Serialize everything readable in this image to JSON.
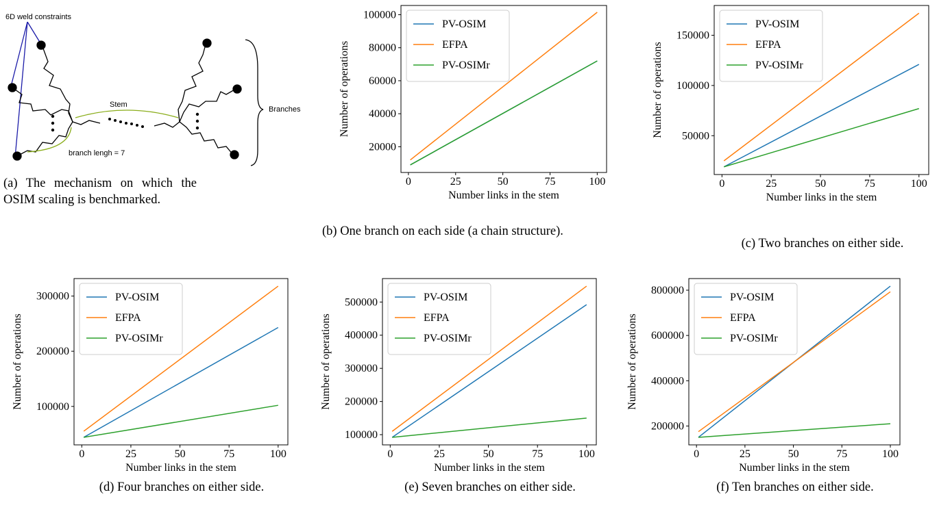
{
  "diagram": {
    "labels": [
      "6D weld constraints",
      "Stem",
      "branch lengh = 7",
      "Branches"
    ],
    "caption": "(a) The mechanism on which the OSIM scaling is benchmarked."
  },
  "chart_data": [
    {
      "type": "line",
      "caption": "(b) One branch on each side (a chain structure).",
      "x_label": "Number links in the stem",
      "y_label": "Number of operations",
      "x": [
        1,
        100
      ],
      "series": [
        {
          "name": "PV-OSIM",
          "color": "#1f77b4",
          "values": [
            9000,
            72000
          ]
        },
        {
          "name": "EFPA",
          "color": "#ff7f0e",
          "values": [
            12000,
            101500
          ]
        },
        {
          "name": "PV-OSIMr",
          "color": "#2ca02c",
          "values": [
            9000,
            72000
          ]
        }
      ],
      "xlim": [
        -3.95,
        104.95
      ],
      "xticks": [
        0,
        25,
        50,
        75,
        100
      ],
      "ylim": [
        4400,
        105600
      ],
      "yticks": [
        20000,
        40000,
        60000,
        80000,
        100000
      ],
      "legend": "upper left"
    },
    {
      "type": "line",
      "caption": "(c) Two branches on either side.",
      "x_label": "Number links in the stem",
      "y_label": "Number of operations",
      "x": [
        1,
        100
      ],
      "series": [
        {
          "name": "PV-OSIM",
          "color": "#1f77b4",
          "values": [
            19000,
            121000
          ]
        },
        {
          "name": "EFPA",
          "color": "#ff7f0e",
          "values": [
            25000,
            172000
          ]
        },
        {
          "name": "PV-OSIMr",
          "color": "#2ca02c",
          "values": [
            19000,
            77000
          ]
        }
      ],
      "xlim": [
        -3.95,
        104.95
      ],
      "xticks": [
        0,
        25,
        50,
        75,
        100
      ],
      "ylim": [
        11350,
        179650
      ],
      "yticks": [
        50000,
        100000,
        150000
      ],
      "legend": "upper left"
    },
    {
      "type": "line",
      "caption": "(d) Four branches on either side.",
      "x_label": "Number links in the stem",
      "y_label": "Number of operations",
      "x": [
        1,
        100
      ],
      "series": [
        {
          "name": "PV-OSIM",
          "color": "#1f77b4",
          "values": [
            44000,
            243000
          ]
        },
        {
          "name": "EFPA",
          "color": "#ff7f0e",
          "values": [
            55000,
            318000
          ]
        },
        {
          "name": "PV-OSIMr",
          "color": "#2ca02c",
          "values": [
            44000,
            102000
          ]
        }
      ],
      "xlim": [
        -3.95,
        104.95
      ],
      "xticks": [
        0,
        25,
        50,
        75,
        100
      ],
      "ylim": [
        30300,
        331700
      ],
      "yticks": [
        100000,
        200000,
        300000
      ],
      "legend": "upper left"
    },
    {
      "type": "line",
      "caption": "(e) Seven branches on either side.",
      "x_label": "Number links in the stem",
      "y_label": "Number of operations",
      "x": [
        1,
        100
      ],
      "series": [
        {
          "name": "PV-OSIM",
          "color": "#1f77b4",
          "values": [
            92000,
            492000
          ]
        },
        {
          "name": "EFPA",
          "color": "#ff7f0e",
          "values": [
            110000,
            548000
          ]
        },
        {
          "name": "PV-OSIMr",
          "color": "#2ca02c",
          "values": [
            92000,
            150000
          ]
        }
      ],
      "xlim": [
        -3.95,
        104.95
      ],
      "xticks": [
        0,
        25,
        50,
        75,
        100
      ],
      "ylim": [
        69200,
        570800
      ],
      "yticks": [
        100000,
        200000,
        300000,
        400000,
        500000
      ],
      "legend": "upper left"
    },
    {
      "type": "line",
      "caption": "(f) Ten branches on either side.",
      "x_label": "Number links in the stem",
      "y_label": "Number of operations",
      "x": [
        1,
        100
      ],
      "series": [
        {
          "name": "PV-OSIM",
          "color": "#1f77b4",
          "values": [
            150000,
            818000
          ]
        },
        {
          "name": "EFPA",
          "color": "#ff7f0e",
          "values": [
            175000,
            793000
          ]
        },
        {
          "name": "PV-OSIMr",
          "color": "#2ca02c",
          "values": [
            150000,
            210000
          ]
        }
      ],
      "xlim": [
        -3.95,
        104.95
      ],
      "xticks": [
        0,
        25,
        50,
        75,
        100
      ],
      "ylim": [
        116600,
        851400
      ],
      "yticks": [
        200000,
        400000,
        600000,
        800000
      ],
      "legend": "upper left"
    }
  ]
}
